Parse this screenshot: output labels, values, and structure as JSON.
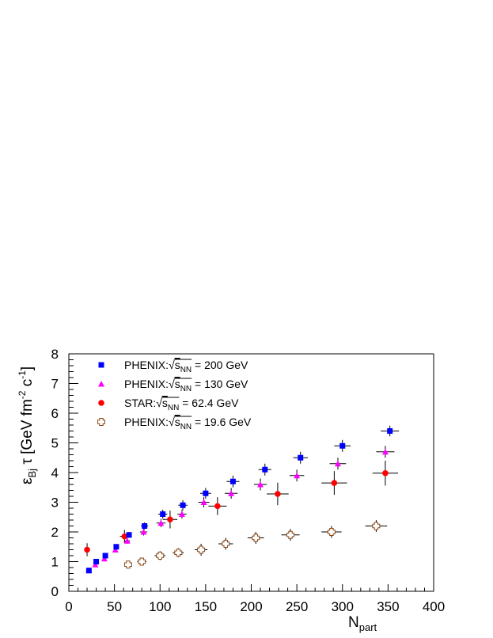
{
  "chart_data": {
    "type": "scatter",
    "xlabel": "N",
    "xlabel_sub": "part",
    "ylabel": "ε",
    "ylabel_rest": " τ [GeV fm",
    "ylabel_exp1": "-2",
    "ylabel_mid": " c",
    "ylabel_exp2": "-1",
    "ylabel_end": "]",
    "ylabel_sub": "Bj",
    "xlim": [
      0,
      400
    ],
    "ylim": [
      0,
      8
    ],
    "xticks": [
      0,
      50,
      100,
      150,
      200,
      250,
      300,
      350,
      400
    ],
    "yticks": [
      0,
      1,
      2,
      3,
      4,
      5,
      6,
      7,
      8
    ],
    "grid": false,
    "legend_position": "top-left",
    "series": [
      {
        "name": "PHENIX: √sNN = 200 GeV",
        "label_prefix": "PHENIX:",
        "label_sqrt": "s",
        "label_sub": "NN",
        "label_suffix": " = 200 GeV",
        "marker": "square",
        "color": "#0000ff",
        "points": [
          {
            "x": 22,
            "y": 0.7,
            "xerr": 0,
            "yerr": 0.05
          },
          {
            "x": 30,
            "y": 1.0,
            "xerr": 0,
            "yerr": 0.05
          },
          {
            "x": 40,
            "y": 1.2,
            "xerr": 0,
            "yerr": 0.05
          },
          {
            "x": 52,
            "y": 1.5,
            "xerr": 0,
            "yerr": 0.08
          },
          {
            "x": 66,
            "y": 1.9,
            "xerr": 3,
            "yerr": 0.1
          },
          {
            "x": 83,
            "y": 2.2,
            "xerr": 4,
            "yerr": 0.12
          },
          {
            "x": 103,
            "y": 2.6,
            "xerr": 5,
            "yerr": 0.15
          },
          {
            "x": 125,
            "y": 2.9,
            "xerr": 5,
            "yerr": 0.17
          },
          {
            "x": 150,
            "y": 3.3,
            "xerr": 6,
            "yerr": 0.18
          },
          {
            "x": 180,
            "y": 3.7,
            "xerr": 7,
            "yerr": 0.2
          },
          {
            "x": 215,
            "y": 4.1,
            "xerr": 7,
            "yerr": 0.2
          },
          {
            "x": 254,
            "y": 4.5,
            "xerr": 8,
            "yerr": 0.2
          },
          {
            "x": 300,
            "y": 4.9,
            "xerr": 9,
            "yerr": 0.2
          },
          {
            "x": 352,
            "y": 5.4,
            "xerr": 10,
            "yerr": 0.18
          }
        ]
      },
      {
        "name": "PHENIX: √sNN = 130 GeV",
        "label_prefix": "PHENIX:",
        "label_sqrt": "s",
        "label_sub": "NN",
        "label_suffix": " = 130 GeV",
        "marker": "triangle",
        "color": "#ff00ff",
        "points": [
          {
            "x": 22,
            "y": 0.7,
            "xerr": 0,
            "yerr": 0.05
          },
          {
            "x": 29,
            "y": 0.9,
            "xerr": 0,
            "yerr": 0.05
          },
          {
            "x": 39,
            "y": 1.1,
            "xerr": 0,
            "yerr": 0.05
          },
          {
            "x": 51,
            "y": 1.4,
            "xerr": 0,
            "yerr": 0.08
          },
          {
            "x": 64,
            "y": 1.7,
            "xerr": 3,
            "yerr": 0.1
          },
          {
            "x": 82,
            "y": 2.0,
            "xerr": 4,
            "yerr": 0.12
          },
          {
            "x": 101,
            "y": 2.3,
            "xerr": 5,
            "yerr": 0.14
          },
          {
            "x": 124,
            "y": 2.6,
            "xerr": 5,
            "yerr": 0.15
          },
          {
            "x": 148,
            "y": 3.0,
            "xerr": 6,
            "yerr": 0.17
          },
          {
            "x": 178,
            "y": 3.3,
            "xerr": 7,
            "yerr": 0.18
          },
          {
            "x": 210,
            "y": 3.6,
            "xerr": 7,
            "yerr": 0.2
          },
          {
            "x": 250,
            "y": 3.9,
            "xerr": 8,
            "yerr": 0.2
          },
          {
            "x": 295,
            "y": 4.3,
            "xerr": 9,
            "yerr": 0.2
          },
          {
            "x": 347,
            "y": 4.7,
            "xerr": 10,
            "yerr": 0.2
          }
        ]
      },
      {
        "name": "STAR: √sNN = 62.4 GeV",
        "label_prefix": "STAR:",
        "label_sqrt": "s",
        "label_sub": "NN",
        "label_suffix": " = 62.4 GeV",
        "marker": "circle",
        "color": "#ff0000",
        "points": [
          {
            "x": 20,
            "y": 1.4,
            "xerr": 2,
            "yerr": 0.22
          },
          {
            "x": 61,
            "y": 1.85,
            "xerr": 5,
            "yerr": 0.22
          },
          {
            "x": 111,
            "y": 2.42,
            "xerr": 8,
            "yerr": 0.3
          },
          {
            "x": 163,
            "y": 2.87,
            "xerr": 10,
            "yerr": 0.3
          },
          {
            "x": 229,
            "y": 3.28,
            "xerr": 12,
            "yerr": 0.38
          },
          {
            "x": 291,
            "y": 3.65,
            "xerr": 14,
            "yerr": 0.4
          },
          {
            "x": 347,
            "y": 3.98,
            "xerr": 14,
            "yerr": 0.42
          }
        ]
      },
      {
        "name": "PHENIX: √sNN = 19.6 GeV",
        "label_prefix": "PHENIX:",
        "label_sqrt": "s",
        "label_sub": "NN",
        "label_suffix": " = 19.6 GeV",
        "marker": "open-cross",
        "color": "#8b4513",
        "points": [
          {
            "x": 65,
            "y": 0.9,
            "xerr": 4,
            "yerr": 0.1
          },
          {
            "x": 80,
            "y": 1.0,
            "xerr": 5,
            "yerr": 0.1
          },
          {
            "x": 100,
            "y": 1.2,
            "xerr": 6,
            "yerr": 0.15
          },
          {
            "x": 120,
            "y": 1.3,
            "xerr": 6,
            "yerr": 0.15
          },
          {
            "x": 145,
            "y": 1.4,
            "xerr": 7,
            "yerr": 0.2
          },
          {
            "x": 172,
            "y": 1.6,
            "xerr": 8,
            "yerr": 0.2
          },
          {
            "x": 205,
            "y": 1.8,
            "xerr": 9,
            "yerr": 0.2
          },
          {
            "x": 243,
            "y": 1.9,
            "xerr": 10,
            "yerr": 0.2
          },
          {
            "x": 288,
            "y": 2.0,
            "xerr": 11,
            "yerr": 0.2
          },
          {
            "x": 337,
            "y": 2.2,
            "xerr": 12,
            "yerr": 0.2
          }
        ]
      }
    ]
  }
}
